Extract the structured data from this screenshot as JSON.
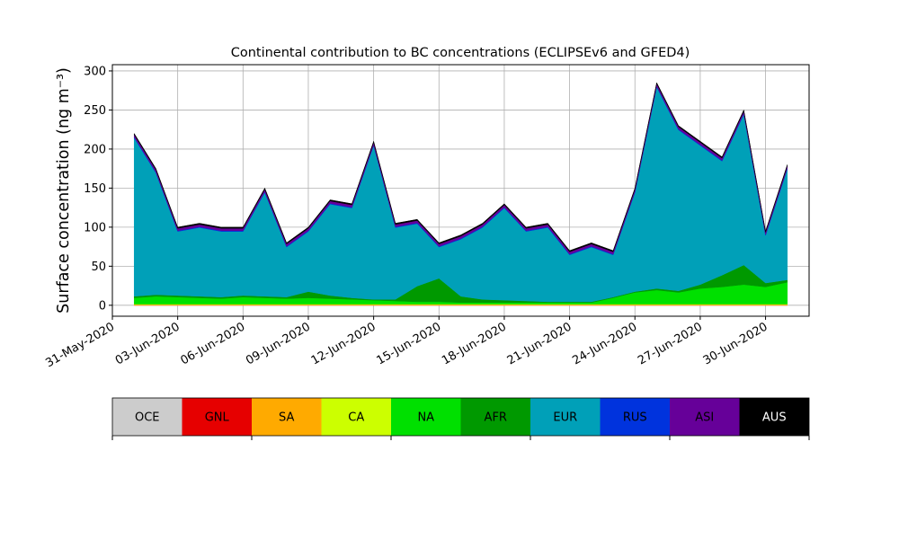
{
  "chart_data": {
    "type": "stacked_area",
    "title": "Continental contribution to BC concentrations (ECLIPSEv6 and GFED4)",
    "y_label": "Surface concentration (ng m⁻³)",
    "x": [
      "2020-06-01",
      "2020-06-02",
      "2020-06-03",
      "2020-06-04",
      "2020-06-05",
      "2020-06-06",
      "2020-06-07",
      "2020-06-08",
      "2020-06-09",
      "2020-06-10",
      "2020-06-11",
      "2020-06-12",
      "2020-06-13",
      "2020-06-14",
      "2020-06-15",
      "2020-06-16",
      "2020-06-17",
      "2020-06-18",
      "2020-06-19",
      "2020-06-20",
      "2020-06-21",
      "2020-06-22",
      "2020-06-23",
      "2020-06-24",
      "2020-06-25",
      "2020-06-26",
      "2020-06-27",
      "2020-06-28",
      "2020-06-29",
      "2020-06-30",
      "2020-07-01"
    ],
    "xlim": [
      "2020-05-31",
      "2020-07-02"
    ],
    "xticks": [
      {
        "value": "2020-05-31",
        "label": "31-May-2020"
      },
      {
        "value": "2020-06-03",
        "label": "03-Jun-2020"
      },
      {
        "value": "2020-06-06",
        "label": "06-Jun-2020"
      },
      {
        "value": "2020-06-09",
        "label": "09-Jun-2020"
      },
      {
        "value": "2020-06-12",
        "label": "12-Jun-2020"
      },
      {
        "value": "2020-06-15",
        "label": "15-Jun-2020"
      },
      {
        "value": "2020-06-18",
        "label": "18-Jun-2020"
      },
      {
        "value": "2020-06-21",
        "label": "21-Jun-2020"
      },
      {
        "value": "2020-06-24",
        "label": "24-Jun-2020"
      },
      {
        "value": "2020-06-27",
        "label": "27-Jun-2020"
      },
      {
        "value": "2020-06-30",
        "label": "30-Jun-2020"
      }
    ],
    "ylim": [
      -14,
      308
    ],
    "yticks": [
      0,
      50,
      100,
      150,
      200,
      250,
      300
    ],
    "grid": true,
    "series": [
      {
        "name": "OCE",
        "color": "#cccccc",
        "values": [
          0,
          0,
          0,
          0,
          0,
          0,
          0,
          0,
          0,
          0,
          0,
          0,
          0,
          0,
          0,
          0,
          0,
          0,
          0,
          0,
          0,
          0,
          0,
          0,
          0,
          0,
          0,
          0,
          0,
          0,
          0
        ]
      },
      {
        "name": "GNL",
        "color": "#e60000",
        "values": [
          0,
          0,
          0,
          0,
          0,
          0,
          0,
          0,
          0,
          0,
          0,
          0,
          0,
          0,
          0,
          0,
          0,
          0,
          0,
          0,
          0,
          0,
          0,
          0,
          0,
          0,
          0,
          0,
          0,
          0,
          0
        ]
      },
      {
        "name": "SA",
        "color": "#ffaa00",
        "values": [
          1,
          1,
          1,
          1,
          1,
          1,
          1,
          1,
          1,
          1,
          1,
          1,
          1,
          1,
          1,
          1,
          1,
          1,
          1,
          1,
          1,
          1,
          1,
          1,
          1,
          1,
          1,
          1,
          1,
          1,
          1
        ]
      },
      {
        "name": "CA",
        "color": "#ccff00",
        "values": [
          0.5,
          0.5,
          0.5,
          0.5,
          0.5,
          0.5,
          0.5,
          0.5,
          0.5,
          0.5,
          0.5,
          0.5,
          0.5,
          0.5,
          0.5,
          0.5,
          0.5,
          0.5,
          0.5,
          0.5,
          0.5,
          0.5,
          0.5,
          0.5,
          0.5,
          0.5,
          0.5,
          0.5,
          0.5,
          0.5,
          0.5
        ]
      },
      {
        "name": "NA",
        "color": "#00e000",
        "values": [
          8,
          10,
          9,
          8,
          7,
          9,
          8,
          7,
          8,
          7,
          6,
          5,
          4,
          3,
          3,
          2,
          2,
          2,
          2,
          2,
          2,
          2,
          8,
          15,
          18,
          15,
          20,
          22,
          25,
          22,
          28
        ]
      },
      {
        "name": "AFR",
        "color": "#009900",
        "values": [
          2,
          2,
          2,
          2,
          2,
          2,
          2,
          2,
          8,
          4,
          2,
          1,
          2,
          20,
          30,
          8,
          4,
          3,
          2,
          1,
          1,
          1,
          1,
          1,
          2,
          2,
          5,
          15,
          25,
          5,
          3
        ]
      },
      {
        "name": "EUR",
        "color": "#00a0b8",
        "values": [
          203,
          156,
          82,
          88,
          84,
          82,
          133,
          64,
          77,
          117,
          115,
          197,
          92,
          80,
          40,
          73,
          92,
          118,
          89,
          95,
          60,
          70,
          54,
          127,
          258,
          206,
          178,
          146,
          193,
          61,
          142
        ]
      },
      {
        "name": "RUS",
        "color": "#0033dd",
        "values": [
          1,
          1,
          1,
          1,
          1,
          1,
          1,
          1,
          1,
          1,
          1,
          1,
          1,
          1,
          1,
          1,
          1,
          1,
          1,
          1,
          1,
          1,
          1,
          1,
          1,
          1,
          1,
          1,
          1,
          1,
          1
        ]
      },
      {
        "name": "ASI",
        "color": "#660099",
        "values": [
          3,
          3,
          3,
          3,
          3,
          3,
          3,
          3,
          3,
          3,
          3,
          3,
          3,
          3,
          3,
          3,
          3,
          3,
          3,
          3,
          3,
          3,
          3,
          3,
          3,
          3,
          3,
          3,
          3,
          3,
          3
        ]
      },
      {
        "name": "AUS",
        "color": "#000000",
        "values": [
          1.5,
          1.5,
          1.5,
          1.5,
          1.5,
          1.5,
          1.5,
          1.5,
          1.5,
          1.5,
          1.5,
          1.5,
          1.5,
          1.5,
          1.5,
          1.5,
          1.5,
          1.5,
          1.5,
          1.5,
          1.5,
          1.5,
          1.5,
          1.5,
          1.5,
          1.5,
          1.5,
          1.5,
          1.5,
          1.5,
          1.5
        ]
      }
    ]
  }
}
